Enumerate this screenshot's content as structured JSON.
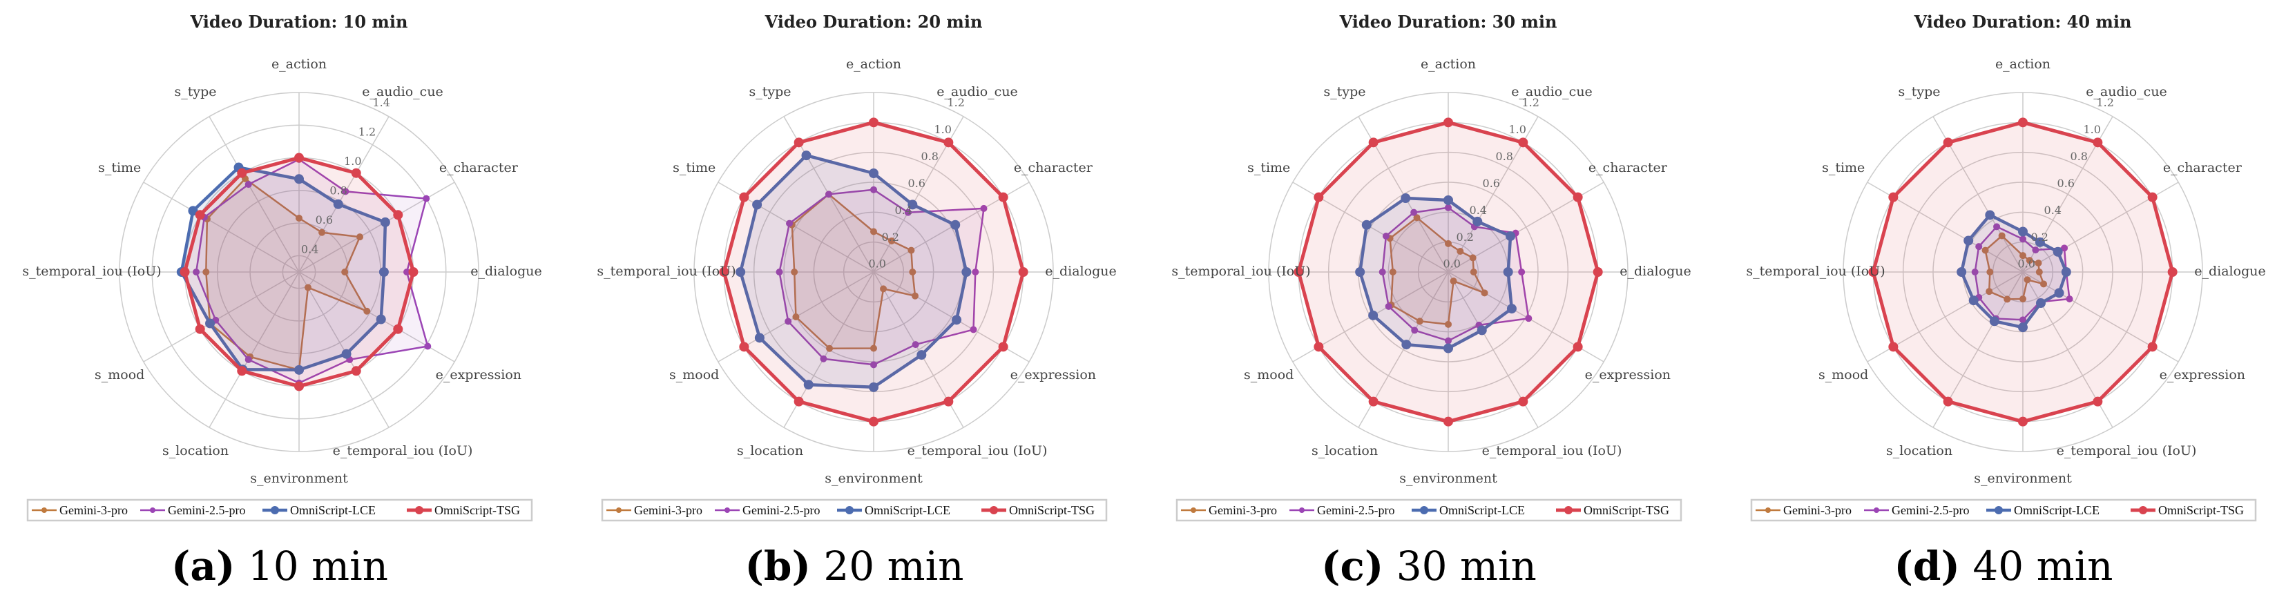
{
  "chart_data": [
    {
      "type": "radar",
      "title": "Video Duration: 10 min",
      "caption": {
        "label": "(a)",
        "text": "10 min"
      },
      "categories": [
        "e_action",
        "e_audio_cue",
        "e_character",
        "e_dialogue",
        "e_expression",
        "e_temporal_iou (IoU)",
        "s_environment",
        "s_location",
        "s_mood",
        "s_temporal_iou (IoU)",
        "s_time",
        "s_type"
      ],
      "rlim": [
        0.3,
        1.4
      ],
      "ticks": [
        "0.4",
        "0.6",
        "0.8",
        "1.0",
        "1.2",
        "1.4"
      ],
      "grid": true,
      "legend": "bottom",
      "series": [
        {
          "name": "Gemini-3-pro",
          "color": "#C07A3E",
          "values": [
            0.63,
            0.58,
            0.73,
            0.58,
            0.78,
            0.41,
            0.9,
            0.9,
            0.93,
            0.87,
            0.95,
            0.96
          ]
        },
        {
          "name": "Gemini-2.5-pro",
          "color": "#9B45B5",
          "values": [
            0.99,
            0.87,
            1.2,
            0.96,
            1.21,
            0.92,
            0.98,
            0.92,
            0.89,
            0.93,
            0.97,
            0.92
          ]
        },
        {
          "name": "OmniScript-LCE",
          "color": "#4C6CB0",
          "values": [
            0.87,
            0.78,
            0.91,
            0.82,
            0.88,
            0.88,
            0.9,
            0.99,
            0.93,
            1.02,
            1.05,
            1.04
          ]
        },
        {
          "name": "OmniScript-TSG",
          "color": "#D9434F",
          "values": [
            1.0,
            1.0,
            1.0,
            1.0,
            1.0,
            1.0,
            1.0,
            1.0,
            1.0,
            1.0,
            1.0,
            1.0
          ]
        }
      ]
    },
    {
      "type": "radar",
      "title": "Video Duration: 20 min",
      "caption": {
        "label": "(b)",
        "text": "20 min"
      },
      "categories": [
        "e_action",
        "e_audio_cue",
        "e_character",
        "e_dialogue",
        "e_expression",
        "e_temporal_iou (IoU)",
        "s_environment",
        "s_location",
        "s_mood",
        "s_temporal_iou (IoU)",
        "s_time",
        "s_type"
      ],
      "rlim": [
        0.0,
        1.2
      ],
      "ticks": [
        "0.0",
        "0.2",
        "0.4",
        "0.6",
        "0.8",
        "1.0",
        "1.2"
      ],
      "grid": true,
      "legend": "bottom",
      "series": [
        {
          "name": "Gemini-3-pro",
          "color": "#C07A3E",
          "values": [
            0.27,
            0.24,
            0.29,
            0.26,
            0.32,
            0.13,
            0.51,
            0.59,
            0.6,
            0.53,
            0.63,
            0.6
          ]
        },
        {
          "name": "Gemini-2.5-pro",
          "color": "#9B45B5",
          "values": [
            0.55,
            0.46,
            0.85,
            0.68,
            0.77,
            0.56,
            0.62,
            0.67,
            0.66,
            0.63,
            0.65,
            0.6
          ]
        },
        {
          "name": "OmniScript-LCE",
          "color": "#4C6CB0",
          "values": [
            0.66,
            0.52,
            0.63,
            0.62,
            0.64,
            0.64,
            0.77,
            0.87,
            0.88,
            0.89,
            0.9,
            0.9
          ]
        },
        {
          "name": "OmniScript-TSG",
          "color": "#D9434F",
          "values": [
            1.0,
            1.0,
            1.0,
            1.0,
            1.0,
            1.0,
            1.0,
            1.0,
            1.0,
            1.0,
            1.0,
            1.0
          ]
        }
      ]
    },
    {
      "type": "radar",
      "title": "Video Duration: 30 min",
      "caption": {
        "label": "(c)",
        "text": "30 min"
      },
      "categories": [
        "e_action",
        "e_audio_cue",
        "e_character",
        "e_dialogue",
        "e_expression",
        "e_temporal_iou (IoU)",
        "s_environment",
        "s_location",
        "s_mood",
        "s_temporal_iou (IoU)",
        "s_time",
        "s_type"
      ],
      "rlim": [
        0.0,
        1.2
      ],
      "ticks": [
        "0.0",
        "0.2",
        "0.4",
        "0.6",
        "0.8",
        "1.0",
        "1.2"
      ],
      "grid": true,
      "legend": "bottom",
      "series": [
        {
          "name": "Gemini-3-pro",
          "color": "#C07A3E",
          "values": [
            0.19,
            0.16,
            0.19,
            0.17,
            0.28,
            0.07,
            0.35,
            0.38,
            0.44,
            0.37,
            0.45,
            0.42
          ]
        },
        {
          "name": "Gemini-2.5-pro",
          "color": "#9B45B5",
          "values": [
            0.43,
            0.35,
            0.52,
            0.49,
            0.62,
            0.41,
            0.46,
            0.45,
            0.46,
            0.44,
            0.48,
            0.46
          ]
        },
        {
          "name": "OmniScript-LCE",
          "color": "#4C6CB0",
          "values": [
            0.48,
            0.39,
            0.48,
            0.4,
            0.49,
            0.45,
            0.51,
            0.56,
            0.58,
            0.59,
            0.63,
            0.57
          ]
        },
        {
          "name": "OmniScript-TSG",
          "color": "#D9434F",
          "values": [
            1.0,
            1.0,
            1.0,
            1.0,
            1.0,
            1.0,
            1.0,
            1.0,
            1.0,
            1.0,
            1.0,
            1.0
          ]
        }
      ]
    },
    {
      "type": "radar",
      "title": "Video Duration: 40 min",
      "caption": {
        "label": "(d)",
        "text": "40 min"
      },
      "categories": [
        "e_action",
        "e_audio_cue",
        "e_character",
        "e_dialogue",
        "e_expression",
        "e_temporal_iou (IoU)",
        "s_environment",
        "s_location",
        "s_mood",
        "s_temporal_iou (IoU)",
        "s_time",
        "s_type"
      ],
      "rlim": [
        0.0,
        1.2
      ],
      "ticks": [
        "0.0",
        "0.2",
        "0.4",
        "0.6",
        "0.8",
        "1.0",
        "1.2"
      ],
      "grid": true,
      "legend": "bottom",
      "series": [
        {
          "name": "Gemini-3-pro",
          "color": "#C07A3E",
          "values": [
            0.11,
            0.09,
            0.12,
            0.11,
            0.16,
            0.06,
            0.18,
            0.21,
            0.26,
            0.22,
            0.29,
            0.28
          ]
        },
        {
          "name": "Gemini-2.5-pro",
          "color": "#9B45B5",
          "values": [
            0.22,
            0.17,
            0.32,
            0.29,
            0.36,
            0.23,
            0.32,
            0.36,
            0.34,
            0.32,
            0.34,
            0.35
          ]
        },
        {
          "name": "OmniScript-LCE",
          "color": "#4C6CB0",
          "values": [
            0.27,
            0.23,
            0.27,
            0.29,
            0.28,
            0.24,
            0.37,
            0.38,
            0.38,
            0.41,
            0.42,
            0.44
          ]
        },
        {
          "name": "OmniScript-TSG",
          "color": "#D9434F",
          "values": [
            1.0,
            1.0,
            1.0,
            1.0,
            1.0,
            1.0,
            1.0,
            1.0,
            1.0,
            1.0,
            1.0,
            1.0
          ]
        }
      ]
    }
  ]
}
